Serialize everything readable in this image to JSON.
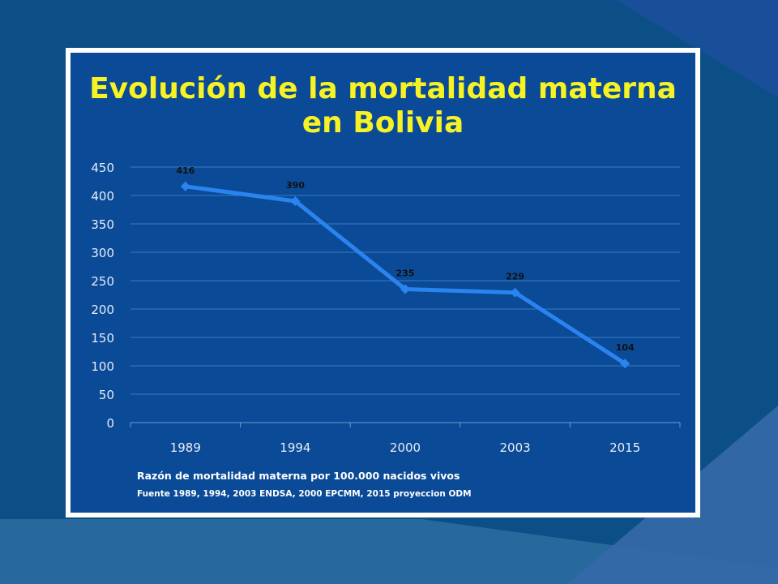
{
  "slide": {
    "colors": {
      "background": "#0b4f86",
      "panel": "#0a4a97",
      "title": "#f7f223",
      "line": "#2a84f0"
    }
  },
  "chart_data": {
    "type": "line",
    "title": "Evolución de la mortalidad materna en Bolivia",
    "categories": [
      "1989",
      "1994",
      "2000",
      "2003",
      "2015"
    ],
    "series": [
      {
        "values": [
          416,
          390,
          235,
          229,
          104
        ]
      }
    ],
    "data_labels": [
      "416",
      "390",
      "235",
      "229",
      "104"
    ],
    "ylim": [
      0,
      450
    ],
    "yticks": [
      0,
      50,
      100,
      150,
      200,
      250,
      300,
      350,
      400,
      450
    ],
    "grid": true,
    "marker": "diamond",
    "notes": [
      "Razón de mortalidad materna por 100.000 nacidos vivos",
      "Fuente 1989, 1994, 2003 ENDSA, 2000 EPCMM, 2015 proyeccion ODM"
    ]
  }
}
